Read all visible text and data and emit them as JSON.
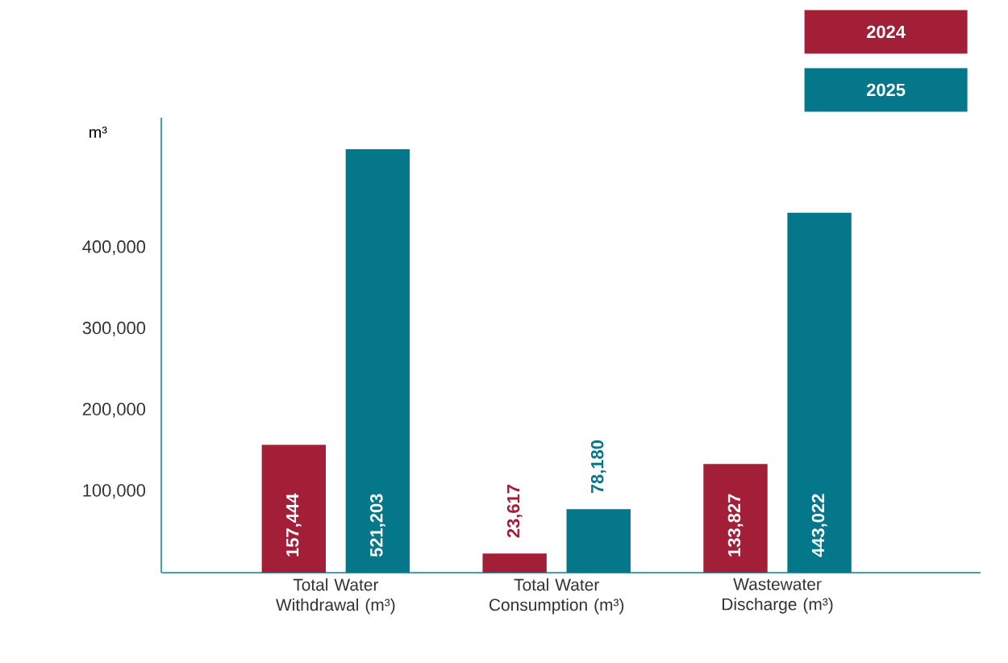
{
  "chart_data": {
    "type": "bar",
    "ylabel": "m³",
    "categories": [
      "Total Water Withdrawal (m³)",
      "Total Water Consumption (m³)",
      "Wastewater Discharge (m³)"
    ],
    "series": [
      {
        "name": "2024",
        "color": "#a31f37",
        "values": [
          157444,
          23617,
          133827
        ],
        "value_labels": [
          "157,444",
          "23,617",
          "133,827"
        ]
      },
      {
        "name": "2025",
        "color": "#05778a",
        "values": [
          521203,
          78180,
          443022
        ],
        "value_labels": [
          "521,203",
          "78,180",
          "443,022"
        ]
      }
    ],
    "ylim": [
      0,
      560000
    ],
    "yticks": [
      {
        "value": 100000,
        "label": "100,000"
      },
      {
        "value": 200000,
        "label": "200,000"
      },
      {
        "value": 300000,
        "label": "300,000"
      },
      {
        "value": 400000,
        "label": "400,000"
      }
    ],
    "legend": "top right",
    "grid": false
  }
}
